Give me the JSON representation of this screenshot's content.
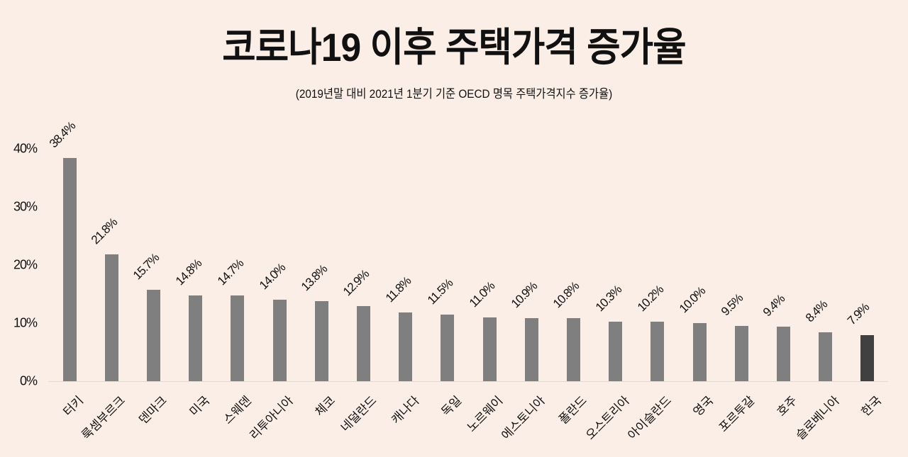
{
  "title": "코로나19 이후 주택가격 증가율",
  "subtitle": "(2019년말 대비 2021년 1분기 기준 OECD 명목 주택가격지수 증가율)",
  "colors": {
    "background": "#fbeee6",
    "bar": "#7f7f7f",
    "highlight_bar": "#404040",
    "axis": "#e2d9d2"
  },
  "y_axis": {
    "ticks": [
      "0%",
      "10%",
      "20%",
      "30%",
      "40%"
    ]
  },
  "chart_data": {
    "type": "bar",
    "title": "코로나19 이후 주택가격 증가율",
    "subtitle": "(2019년말 대비 2021년 1분기 기준 OECD 명목 주택가격지수 증가율)",
    "xlabel": "",
    "ylabel": "",
    "ylim": [
      0,
      40
    ],
    "yticks": [
      0,
      10,
      20,
      30,
      40
    ],
    "ytick_labels": [
      "0%",
      "10%",
      "20%",
      "30%",
      "40%"
    ],
    "grid": false,
    "legend": null,
    "categories": [
      "터키",
      "룩셈부르크",
      "덴마크",
      "미국",
      "스웨덴",
      "리투아니아",
      "체코",
      "네덜란드",
      "캐나다",
      "독일",
      "노르웨이",
      "에스토니아",
      "폴란드",
      "오스트리아",
      "아이슬란드",
      "영국",
      "포르투갈",
      "호주",
      "슬로베니아",
      "한국"
    ],
    "values": [
      38.4,
      21.8,
      15.7,
      14.8,
      14.7,
      14.0,
      13.8,
      12.9,
      11.8,
      11.5,
      11.0,
      10.9,
      10.8,
      10.3,
      10.2,
      10.0,
      9.5,
      9.4,
      8.4,
      7.9
    ],
    "value_labels": [
      "38.4%",
      "21.8%",
      "15.7%",
      "14.8%",
      "14.7%",
      "14.0%",
      "13.8%",
      "12.9%",
      "11.8%",
      "11.5%",
      "11.0%",
      "10.9%",
      "10.8%",
      "10.3%",
      "10.2%",
      "10.0%",
      "9.5%",
      "9.4%",
      "8.4%",
      "7.9%"
    ],
    "highlight": "한국"
  }
}
